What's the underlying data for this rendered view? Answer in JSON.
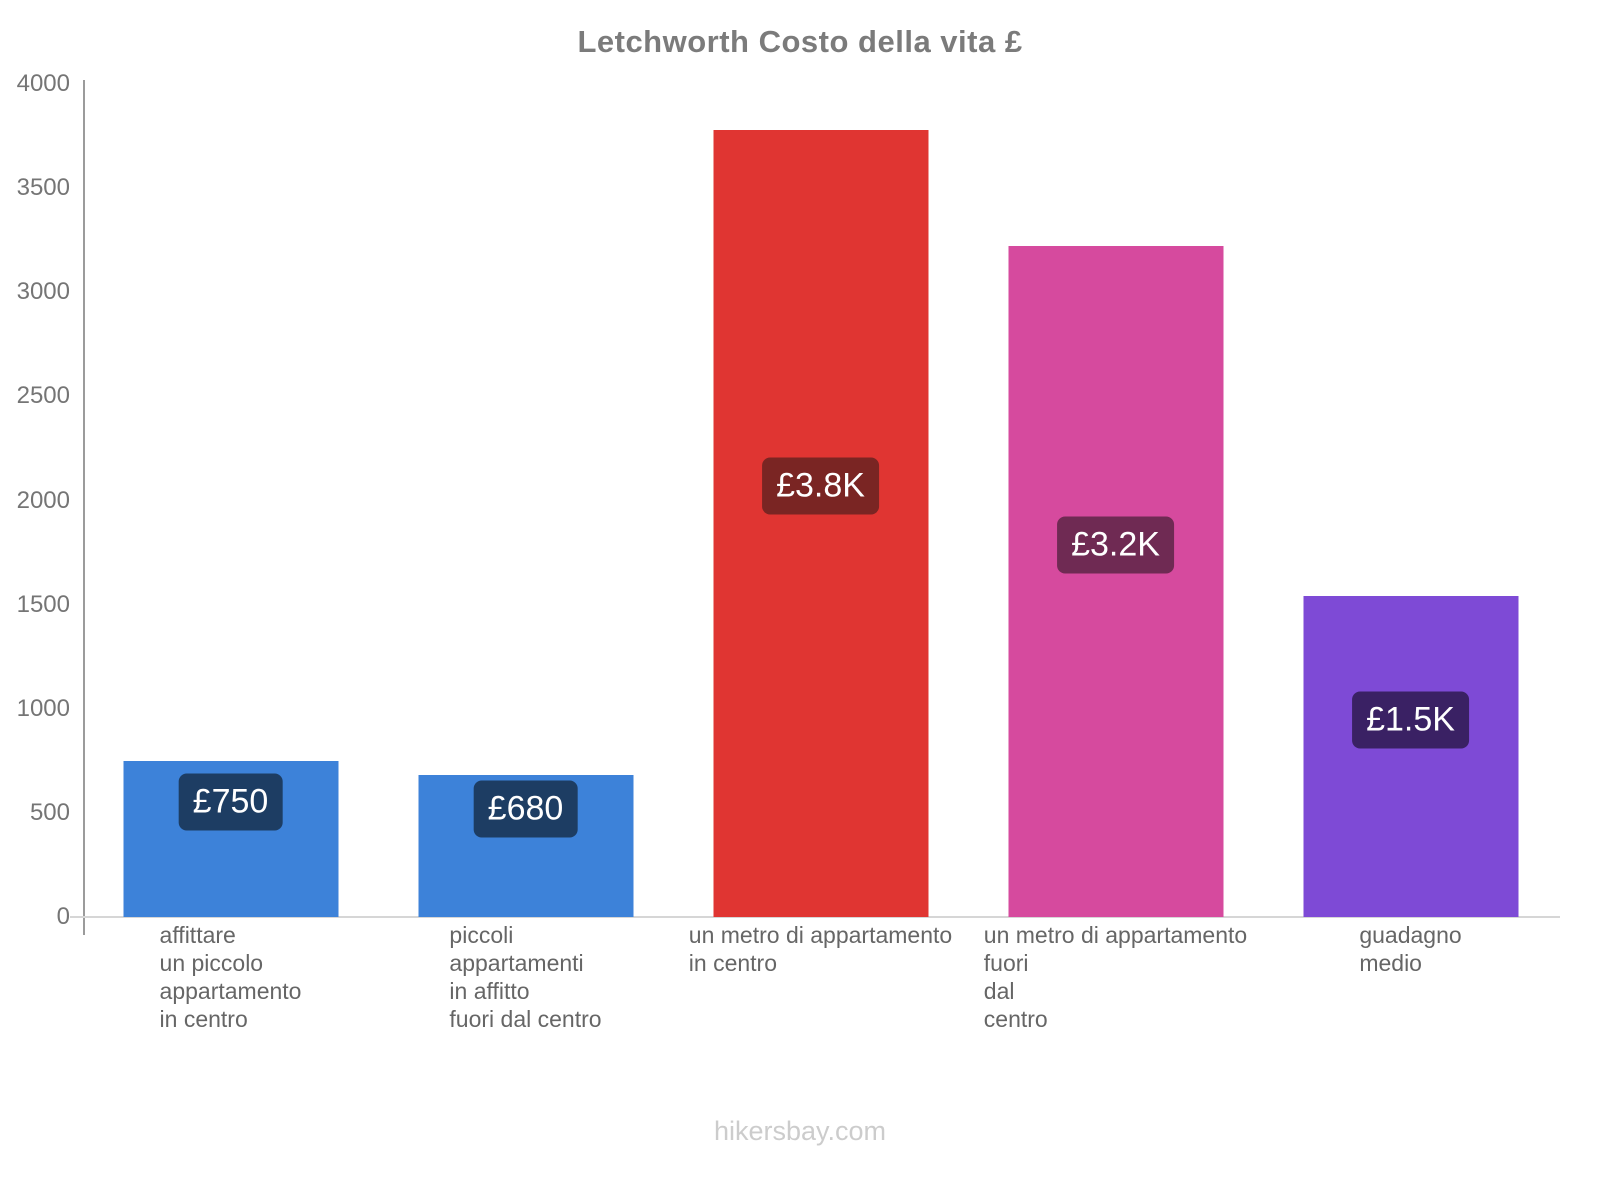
{
  "title": "Letchworth Costo della vita £",
  "footer": "hikersbay.com",
  "chart_data": {
    "type": "bar",
    "title": "Letchworth Costo della vita £",
    "xlabel": "",
    "ylabel": "",
    "ylim": [
      0,
      4000
    ],
    "yticks": [
      0,
      500,
      1000,
      1500,
      2000,
      2500,
      3000,
      3500,
      4000
    ],
    "grid": false,
    "legend": false,
    "categories": [
      [
        "affittare",
        "un piccolo",
        "appartamento",
        "in centro"
      ],
      [
        "piccoli",
        "appartamenti",
        "in affitto",
        "fuori dal centro"
      ],
      [
        "un metro di appartamento",
        "in centro"
      ],
      [
        "un metro di appartamento",
        "fuori",
        "dal",
        "centro"
      ],
      [
        "guadagno",
        "medio"
      ]
    ],
    "values": [
      750,
      680,
      3780,
      3220,
      1540
    ],
    "value_labels": [
      "£750",
      "£680",
      "£3.8K",
      "£3.2K",
      "£1.5K"
    ],
    "bar_colors": [
      "#3d82d9",
      "#3d82d9",
      "#e03532",
      "#d64a9e",
      "#7e4ad6"
    ],
    "badge_colors": [
      "#1d3d63",
      "#1d3d63",
      "#7a2523",
      "#6f2a53",
      "#3a2164"
    ],
    "axis_color": "#9b9b9b",
    "zero_line_color": "#d6d6d6"
  }
}
